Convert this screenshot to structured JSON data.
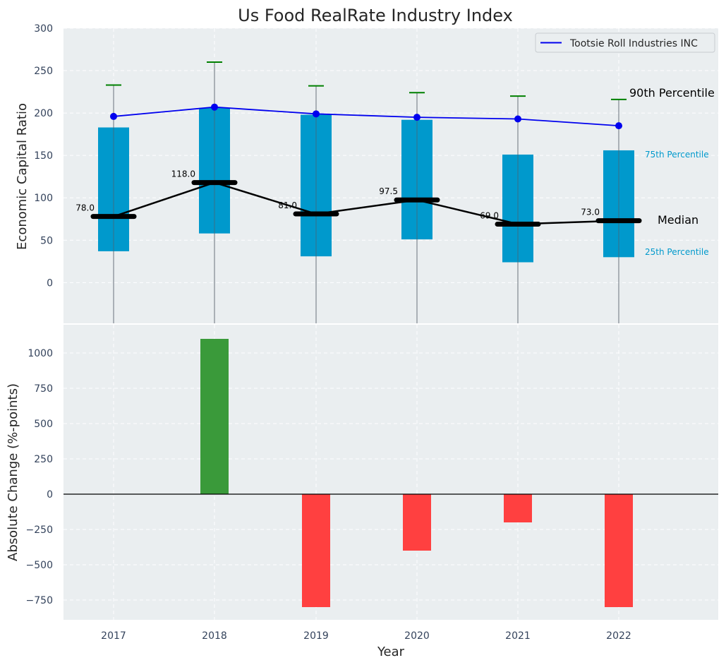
{
  "chart_data": [
    {
      "type": "box",
      "title": "Us Food RealRate Industry Index",
      "ylabel": "Economic Capital Ratio",
      "ylim": [
        -48,
        300
      ],
      "yticks": [
        0,
        50,
        100,
        150,
        200,
        250,
        300
      ],
      "categories": [
        "2017",
        "2018",
        "2019",
        "2020",
        "2021",
        "2022"
      ],
      "p25": [
        37,
        58,
        31,
        51,
        24,
        30
      ],
      "p75": [
        183,
        206,
        198,
        192,
        151,
        156
      ],
      "p90": [
        233,
        260,
        232,
        224,
        220,
        216
      ],
      "median": [
        78.0,
        118.0,
        81.0,
        97.5,
        69.0,
        73.0
      ],
      "median_labels": [
        "78.0",
        "118.0",
        "81.0",
        "97.5",
        "69.0",
        "73.0"
      ],
      "company": {
        "name": "Tootsie Roll Industries INC",
        "values": [
          196,
          207,
          199,
          195,
          193,
          185
        ],
        "color": "#0000ee"
      },
      "annotations": {
        "p90": "90th Percentile",
        "p75": "75th Percentile",
        "median": "Median",
        "p25": "25th Percentile"
      },
      "legend": "top-right",
      "grid": true,
      "colors": {
        "box": "#0099cc",
        "whisker_cap": "#008000",
        "median": "#000000",
        "background": "#eaeef0"
      }
    },
    {
      "type": "bar",
      "xlabel": "Year",
      "ylabel": "Absolute Change (%-points)",
      "ylim": [
        -890,
        1200
      ],
      "yticks": [
        -750,
        -500,
        -250,
        0,
        250,
        500,
        750,
        1000
      ],
      "categories": [
        "2017",
        "2018",
        "2019",
        "2020",
        "2021",
        "2022"
      ],
      "values": [
        0,
        1100,
        -800,
        -400,
        -200,
        -800
      ],
      "grid": true,
      "colors": {
        "positive": "#3a9a3a",
        "negative": "#ff4040"
      }
    }
  ]
}
